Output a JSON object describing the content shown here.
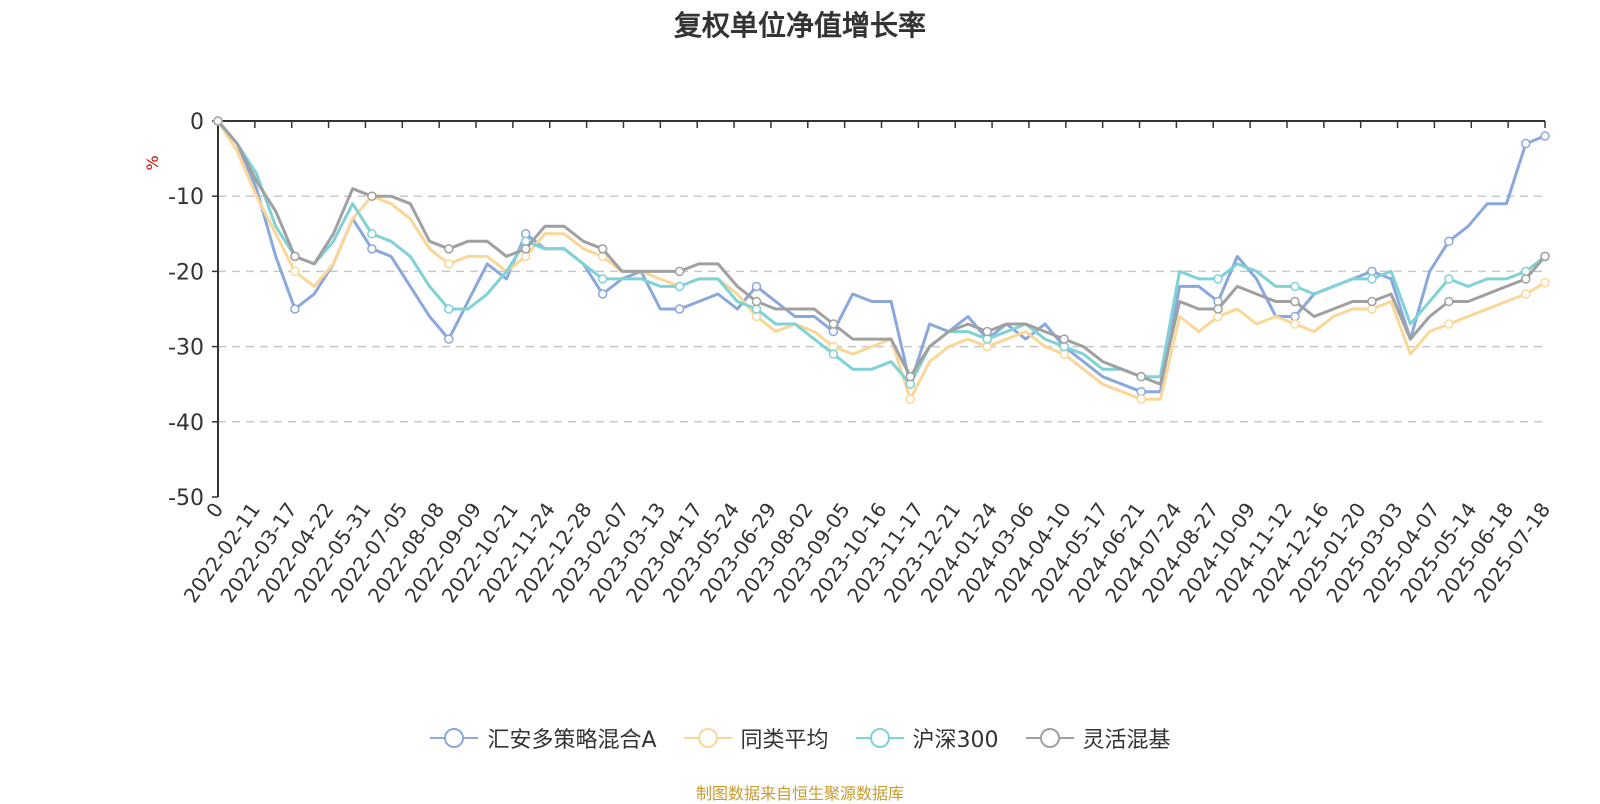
{
  "source_note": "制图数据来自恒生聚源数据库",
  "chart_data": {
    "type": "line",
    "title": "复权单位净值增长率",
    "ylabel": "%",
    "ylim": [
      -50,
      0
    ],
    "y_ticks": [
      0,
      -10,
      -20,
      -30,
      -40,
      -50
    ],
    "x_tick_labels": [
      "0",
      "2022-02-11",
      "2022-03-17",
      "2022-04-22",
      "2022-05-31",
      "2022-07-05",
      "2022-08-08",
      "2022-09-09",
      "2022-10-21",
      "2022-11-24",
      "2022-12-28",
      "2023-02-07",
      "2023-03-13",
      "2023-04-17",
      "2023-05-24",
      "2023-06-29",
      "2023-08-02",
      "2023-09-05",
      "2023-10-16",
      "2023-11-17",
      "2023-12-21",
      "2024-01-24",
      "2024-03-06",
      "2024-04-10",
      "2024-05-17",
      "2024-06-21",
      "2024-07-24",
      "2024-08-27",
      "2024-10-09",
      "2024-11-12",
      "2024-12-16",
      "2025-01-20",
      "2025-03-03",
      "2025-04-07",
      "2025-05-14",
      "2025-06-18",
      "2025-07-18"
    ],
    "grid": "horizontal dashed",
    "legend_position": "bottom",
    "series": [
      {
        "name": "汇安多策略混合A",
        "color": "#8ba8dc",
        "values": [
          0,
          -3,
          -9,
          -18,
          -25,
          -23,
          -19,
          -13,
          -17,
          -18,
          -22,
          -26,
          -29,
          -24,
          -19,
          -21,
          -15,
          -17,
          -17,
          -19,
          -23,
          -21,
          -20,
          -25,
          -25,
          -24,
          -23,
          -25,
          -22,
          -24,
          -26,
          -26,
          -28,
          -23,
          -24,
          -24,
          -35,
          -27,
          -28,
          -26,
          -29,
          -27,
          -29,
          -27,
          -30,
          -32,
          -34,
          -35,
          -36,
          -36,
          -22,
          -22,
          -24,
          -18,
          -21,
          -26,
          -26,
          -23,
          -22,
          -21,
          -20,
          -21,
          -29,
          -20,
          -16,
          -14,
          -11,
          -11,
          -3,
          -2
        ]
      },
      {
        "name": "同类平均",
        "color": "#fad797",
        "values": [
          0,
          -4,
          -10,
          -15,
          -20,
          -22,
          -19,
          -13,
          -10,
          -11,
          -13,
          -17,
          -19,
          -18,
          -18,
          -20,
          -18,
          -15,
          -15,
          -17,
          -18,
          -20,
          -20,
          -21,
          -22,
          -21,
          -21,
          -23,
          -26,
          -28,
          -27,
          -28,
          -30,
          -31,
          -30,
          -29,
          -37,
          -32,
          -30,
          -29,
          -30,
          -29,
          -28,
          -30,
          -31,
          -33,
          -35,
          -36,
          -37,
          -37,
          -26,
          -28,
          -26,
          -25,
          -27,
          -26,
          -27,
          -28,
          -26,
          -25,
          -25,
          -24,
          -31,
          -28,
          -27,
          -26,
          -25,
          -24,
          -23,
          -21.5
        ]
      },
      {
        "name": "沪深300",
        "color": "#7fd2d6",
        "values": [
          0,
          -3,
          -7,
          -14,
          -18,
          -19,
          -16,
          -11,
          -15,
          -16,
          -18,
          -22,
          -25,
          -25,
          -23,
          -20,
          -16,
          -17,
          -17,
          -19,
          -21,
          -21,
          -21,
          -22,
          -22,
          -21,
          -21,
          -24,
          -25,
          -27,
          -27,
          -29,
          -31,
          -33,
          -33,
          -32,
          -35,
          -30,
          -28,
          -28,
          -29,
          -28,
          -27,
          -29,
          -30,
          -31,
          -33,
          -33,
          -34,
          -34,
          -20,
          -21,
          -21,
          -19,
          -20,
          -22,
          -22,
          -23,
          -22,
          -21,
          -21,
          -20,
          -27,
          -24,
          -21,
          -22,
          -21,
          -21,
          -20,
          -18
        ]
      },
      {
        "name": "灵活混基",
        "color": "#a0a0a0",
        "values": [
          0,
          -3,
          -8,
          -12,
          -18,
          -19,
          -15,
          -9,
          -10,
          -10,
          -11,
          -16,
          -17,
          -16,
          -16,
          -18,
          -17,
          -14,
          -14,
          -16,
          -17,
          -20,
          -20,
          -20,
          -20,
          -19,
          -19,
          -22,
          -24,
          -25,
          -25,
          -25,
          -27,
          -29,
          -29,
          -29,
          -34,
          -30,
          -28,
          -27,
          -28,
          -27,
          -27,
          -28,
          -29,
          -30,
          -32,
          -33,
          -34,
          -35,
          -24,
          -25,
          -25,
          -22,
          -23,
          -24,
          -24,
          -26,
          -25,
          -24,
          -24,
          -23,
          -29,
          -26,
          -24,
          -24,
          -23,
          -22,
          -21,
          -18
        ]
      }
    ]
  }
}
